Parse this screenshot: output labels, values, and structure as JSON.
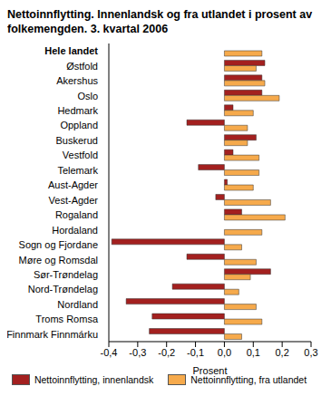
{
  "chart_data": {
    "type": "bar",
    "orientation": "horizontal",
    "title": "Nettoinnflytting. Innenlandsk og fra utlandet i prosent av folkemengden. 3. kvartal 2006",
    "x_label": "Prosent",
    "categories": [
      "Hele landet",
      "Østfold",
      "Akershus",
      "Oslo",
      "Hedmark",
      "Oppland",
      "Buskerud",
      "Vestfold",
      "Telemark",
      "Aust-Agder",
      "Vest-Agder",
      "Rogaland",
      "Hordaland",
      "Sogn og Fjordane",
      "Møre og Romsdal",
      "Sør-Trøndelag",
      "Nord-Trøndelag",
      "Nordland",
      "Troms Romsa",
      "Finnmark Finnmárku"
    ],
    "series": [
      {
        "name": "Nettoinnflytting, innenlandsk",
        "color": "#a3201f",
        "values": [
          0,
          0.14,
          0.13,
          0.13,
          0.03,
          -0.13,
          0.11,
          0.03,
          -0.09,
          0.01,
          -0.03,
          0.06,
          0,
          -0.39,
          -0.13,
          0.16,
          -0.18,
          -0.34,
          -0.25,
          -0.26
        ]
      },
      {
        "name": "Nettoinnflytting, fra utlandet",
        "color": "#f6aa4c",
        "values": [
          0.13,
          0.11,
          0.14,
          0.19,
          0.1,
          0.08,
          0.08,
          0.12,
          0.12,
          0.1,
          0.16,
          0.21,
          0.13,
          0.06,
          0.11,
          0.09,
          0.05,
          0.11,
          0.13,
          0.06
        ]
      }
    ],
    "xlim": [
      -0.4,
      0.3
    ],
    "xticks": [
      {
        "value": -0.4,
        "label": "-0,4"
      },
      {
        "value": -0.3,
        "label": "-0,3"
      },
      {
        "value": -0.2,
        "label": "-0,2"
      },
      {
        "value": -0.1,
        "label": "-0,1"
      },
      {
        "value": 0,
        "label": "0,0"
      },
      {
        "value": 0.1,
        "label": "0,1"
      },
      {
        "value": 0.2,
        "label": "0,2"
      },
      {
        "value": 0.3,
        "label": "0,3"
      }
    ],
    "grid": false,
    "legend": "bottom"
  }
}
